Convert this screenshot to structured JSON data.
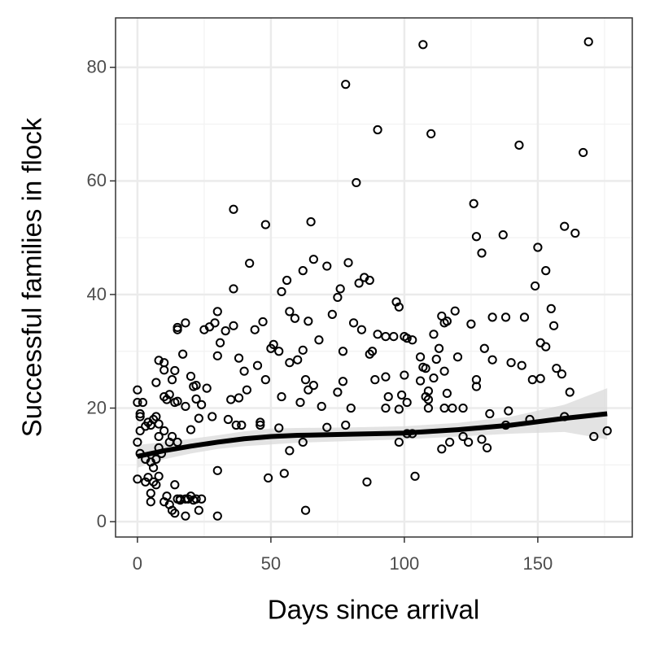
{
  "chart_data": {
    "type": "scatter",
    "x_label": "Days since arrival",
    "y_label": "Successful families in flock",
    "xlim": [
      -8.2,
      185.4
    ],
    "ylim": [
      -2.7,
      88.7
    ],
    "xticks": [
      0,
      50,
      100,
      150
    ],
    "yticks": [
      0,
      20,
      40,
      60,
      80
    ],
    "x_minor_ticks": [
      25,
      75,
      125,
      175
    ],
    "y_minor_ticks": [
      10,
      30,
      50,
      70
    ],
    "grid": true,
    "color": "#000000",
    "x": [
      107,
      169,
      78,
      90,
      110,
      143,
      167,
      82,
      126,
      36,
      160,
      48,
      65,
      164,
      127,
      137,
      129,
      150,
      42,
      66,
      71,
      79,
      62,
      153,
      56,
      83,
      85,
      87,
      36,
      149,
      76,
      54,
      75,
      97,
      98,
      155,
      30,
      57,
      73,
      114,
      119,
      133,
      138,
      145,
      115,
      116,
      59,
      64,
      47,
      18,
      15,
      15,
      25,
      27,
      29,
      33,
      44,
      36,
      81,
      84,
      90,
      93,
      96,
      100,
      101,
      103,
      111,
      125,
      156,
      151,
      153,
      31,
      51,
      50,
      53,
      62,
      68,
      77,
      88,
      87,
      113,
      130,
      133,
      106,
      112,
      17,
      30,
      38,
      8,
      10,
      60,
      57,
      120,
      140,
      144,
      157,
      159,
      10,
      14,
      40,
      45,
      107,
      108,
      115,
      7,
      13,
      20,
      48,
      63,
      66,
      77,
      89,
      93,
      100,
      106,
      111,
      127,
      148,
      151,
      21,
      22,
      0,
      26,
      41,
      64,
      75,
      99,
      109,
      116,
      127,
      162,
      10,
      11,
      12,
      15,
      24,
      2,
      14,
      22,
      35,
      38,
      54,
      61,
      94,
      101,
      108,
      109,
      118,
      122,
      132,
      139,
      0,
      1,
      1,
      4,
      3,
      5,
      7,
      6,
      8,
      18,
      20,
      23,
      28,
      34,
      37,
      39,
      46,
      46,
      53,
      69,
      71,
      78,
      80,
      93,
      98,
      101,
      103,
      109,
      115,
      117,
      122,
      129,
      138,
      147,
      160,
      171,
      176,
      131,
      114,
      124,
      98,
      57,
      62,
      0,
      1,
      1,
      3,
      5,
      8,
      10,
      12,
      13,
      15,
      8,
      9,
      7,
      6,
      0,
      3,
      4,
      5,
      5,
      6,
      7,
      8,
      10,
      11,
      12,
      13,
      14,
      14,
      15,
      16,
      18,
      19,
      20,
      21,
      22,
      23,
      24,
      18,
      30,
      49,
      55,
      86,
      104,
      30,
      63,
      16
    ],
    "y": [
      84,
      84.5,
      77,
      69,
      68.3,
      66.3,
      65,
      59.7,
      56,
      55,
      52,
      52.3,
      52.8,
      50.8,
      50.2,
      50.5,
      47.3,
      48.3,
      45.5,
      46.2,
      45,
      45.6,
      44.2,
      44.2,
      42.5,
      42,
      43,
      42.5,
      41,
      41.5,
      41,
      40.5,
      39.5,
      38.7,
      37.8,
      37.5,
      37,
      37,
      36.5,
      36.2,
      37.1,
      36,
      36,
      36,
      35,
      35.3,
      35.8,
      35.3,
      35.2,
      35,
      34.2,
      33.8,
      33.8,
      34.3,
      35,
      33.6,
      33.8,
      34.5,
      35,
      33.8,
      33,
      32.6,
      32.6,
      32.6,
      32.3,
      32,
      33,
      34.8,
      34.5,
      31.5,
      30.8,
      31.5,
      31.2,
      30.5,
      30,
      30.2,
      32,
      30,
      30,
      29.5,
      30.5,
      30.5,
      28.5,
      29,
      28.6,
      29.5,
      29.2,
      28.8,
      28.4,
      28,
      28.5,
      28,
      29,
      28,
      27.5,
      27,
      26,
      26.7,
      26.6,
      26.5,
      27.5,
      27.2,
      27,
      26.5,
      24.5,
      25,
      25.6,
      25,
      25,
      24,
      24.7,
      25,
      25.5,
      25.8,
      24.8,
      25.3,
      25,
      25,
      25.2,
      23.8,
      24,
      23.2,
      23.5,
      23.2,
      23.2,
      22.8,
      22.3,
      23,
      22.6,
      23.8,
      22.8,
      22,
      21.5,
      22.4,
      21.2,
      20.6,
      21,
      21,
      21.6,
      21.5,
      21.8,
      22,
      21,
      22,
      21,
      22,
      21.5,
      20,
      20,
      19,
      19.5,
      21,
      19,
      18.5,
      17.5,
      16.8,
      17,
      18.5,
      18,
      17.2,
      20.3,
      16.2,
      18.2,
      18.5,
      18,
      17,
      17,
      17.5,
      17,
      16.5,
      20.3,
      16.6,
      17,
      20,
      20,
      19.8,
      15.5,
      15.5,
      20,
      20,
      14,
      15,
      14.5,
      17,
      18,
      18.5,
      15,
      16,
      13,
      12.8,
      14,
      14,
      12.5,
      14,
      14,
      16,
      12,
      11,
      10.5,
      15,
      16,
      14,
      15,
      14,
      13,
      12,
      11,
      9.5,
      7.5,
      7,
      7.8,
      5,
      3.5,
      7,
      6.5,
      8,
      3.5,
      4.5,
      3,
      2,
      1.5,
      6.5,
      4,
      3.8,
      4,
      4,
      4.5,
      3.8,
      4,
      2,
      4,
      1,
      9,
      7.7,
      8.5,
      7,
      8,
      1,
      2,
      4
    ],
    "smooth": {
      "color": "#000000",
      "band_color": "#d9d9d9",
      "x": [
        0,
        10,
        20,
        30,
        40,
        50,
        60,
        80,
        100,
        120,
        140,
        160,
        176
      ],
      "y": [
        11.5,
        12.5,
        13.3,
        14,
        14.6,
        15,
        15.2,
        15.4,
        15.6,
        16.2,
        17,
        18.2,
        19
      ],
      "lower": [
        9.5,
        11,
        12,
        12.8,
        13.3,
        13.6,
        13.9,
        14.2,
        14.5,
        15,
        15.5,
        15.8,
        14.5
      ],
      "upper": [
        13.5,
        14,
        14.6,
        15.2,
        15.9,
        16.4,
        16.5,
        16.6,
        16.8,
        17.4,
        18.5,
        20.6,
        23.5
      ]
    }
  }
}
